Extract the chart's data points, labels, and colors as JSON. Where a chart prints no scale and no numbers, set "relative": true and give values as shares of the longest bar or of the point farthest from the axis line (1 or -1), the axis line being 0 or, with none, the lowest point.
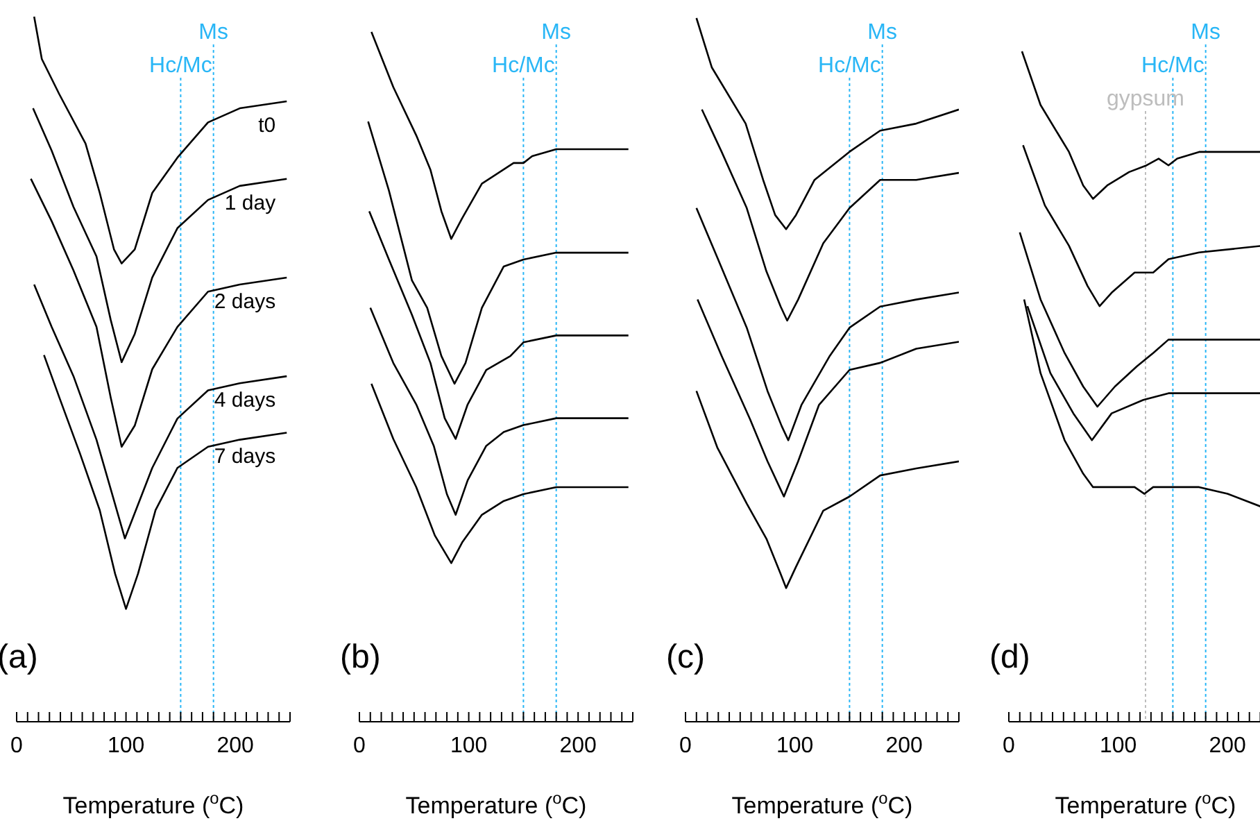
{
  "chart_data": [
    {
      "type": "line",
      "title": "(a)",
      "xlabel": "Temperature ($^{o}$C)",
      "relative": true,
      "xlim": [
        0,
        250
      ],
      "xticks": [
        0,
        {
          "value": 10,
          "label": null
        },
        {
          "value": 20,
          "label": null
        },
        {
          "value": 30,
          "label": null
        },
        {
          "value": 40,
          "label": null
        },
        {
          "value": 50,
          "label": null
        },
        {
          "value": 60,
          "label": null
        },
        {
          "value": 70,
          "label": null
        },
        {
          "value": 80,
          "label": null
        },
        {
          "value": 90,
          "label": null
        },
        100,
        {
          "value": 110,
          "label": null
        },
        {
          "value": 120,
          "label": null
        },
        {
          "value": 130,
          "label": null
        },
        {
          "value": 140,
          "label": null
        },
        {
          "value": 150,
          "label": null
        },
        {
          "value": 160,
          "label": null
        },
        {
          "value": 170,
          "label": null
        },
        {
          "value": 180,
          "label": null
        },
        {
          "value": 190,
          "label": null
        },
        200,
        {
          "value": 210,
          "label": null
        },
        {
          "value": 220,
          "label": null
        },
        {
          "value": 230,
          "label": null
        },
        {
          "value": 240,
          "label": null
        },
        {
          "value": 250,
          "label": null
        }
      ],
      "marker": "none",
      "line_style": "solid",
      "ref_lines": [
        {
          "axis": "x",
          "value": 150,
          "label": "Hc/Mc",
          "color": "#29b6f6",
          "line_style": "dotted"
        },
        {
          "axis": "x",
          "value": 180,
          "label": "Ms",
          "color": "#29b6f6",
          "line_style": "dotted"
        }
      ],
      "series": [
        {
          "name": "t0",
          "color": "#000000",
          "x": [
            16,
            23,
            39,
            63,
            76,
            89,
            96,
            108,
            124,
            147,
            175,
            204,
            247
          ],
          "values": [
            1.0,
            0.94,
            0.89,
            0.82,
            0.75,
            0.67,
            0.65,
            0.67,
            0.75,
            0.8,
            0.85,
            0.87,
            0.88
          ]
        },
        {
          "name": "1 day",
          "color": "#000000",
          "x": [
            15,
            32,
            52,
            73,
            86,
            96,
            108,
            124,
            147,
            175,
            204,
            247
          ],
          "values": [
            0.87,
            0.81,
            0.73,
            0.66,
            0.57,
            0.51,
            0.55,
            0.63,
            0.7,
            0.74,
            0.76,
            0.77
          ]
        },
        {
          "name": "2 days",
          "color": "#000000",
          "x": [
            13,
            32,
            52,
            73,
            86,
            96,
            108,
            124,
            147,
            175,
            204,
            247
          ],
          "values": [
            0.77,
            0.71,
            0.64,
            0.56,
            0.46,
            0.39,
            0.42,
            0.5,
            0.56,
            0.61,
            0.62,
            0.63
          ]
        },
        {
          "name": "4 days",
          "color": "#000000",
          "x": [
            16,
            32,
            52,
            73,
            86,
            99,
            109,
            124,
            147,
            175,
            204,
            247
          ],
          "values": [
            0.62,
            0.56,
            0.49,
            0.4,
            0.33,
            0.26,
            0.3,
            0.36,
            0.43,
            0.47,
            0.48,
            0.49
          ]
        },
        {
          "name": "7 days",
          "color": "#000000",
          "x": [
            25,
            39,
            58,
            76,
            90,
            100,
            111,
            127,
            147,
            175,
            204,
            247
          ],
          "values": [
            0.52,
            0.46,
            0.38,
            0.3,
            0.21,
            0.16,
            0.21,
            0.3,
            0.36,
            0.39,
            0.4,
            0.41
          ]
        }
      ]
    },
    {
      "type": "line",
      "title": "(b)",
      "xlabel": "Temperature ($^{o}$C)",
      "relative": true,
      "xlim": [
        0,
        250
      ],
      "xticks": [
        0,
        {
          "value": 10,
          "label": null
        },
        {
          "value": 20,
          "label": null
        },
        {
          "value": 30,
          "label": null
        },
        {
          "value": 40,
          "label": null
        },
        {
          "value": 50,
          "label": null
        },
        {
          "value": 60,
          "label": null
        },
        {
          "value": 70,
          "label": null
        },
        {
          "value": 80,
          "label": null
        },
        {
          "value": 90,
          "label": null
        },
        100,
        {
          "value": 110,
          "label": null
        },
        {
          "value": 120,
          "label": null
        },
        {
          "value": 130,
          "label": null
        },
        {
          "value": 140,
          "label": null
        },
        {
          "value": 150,
          "label": null
        },
        {
          "value": 160,
          "label": null
        },
        {
          "value": 170,
          "label": null
        },
        {
          "value": 180,
          "label": null
        },
        {
          "value": 190,
          "label": null
        },
        200,
        {
          "value": 210,
          "label": null
        },
        {
          "value": 220,
          "label": null
        },
        {
          "value": 230,
          "label": null
        },
        {
          "value": 240,
          "label": null
        },
        {
          "value": 250,
          "label": null
        }
      ],
      "marker": "none",
      "line_style": "solid",
      "ref_lines": [
        {
          "axis": "x",
          "value": 150,
          "label": "Hc/Mc",
          "color": "#29b6f6",
          "line_style": "dotted"
        },
        {
          "axis": "x",
          "value": 180,
          "label": "Ms",
          "color": "#29b6f6",
          "line_style": "dotted"
        }
      ],
      "series": [
        {
          "color": "#000000",
          "x": [
            11,
            31,
            52,
            65,
            75,
            84,
            94,
            112,
            141,
            150,
            158,
            180,
            209,
            246
          ],
          "values": [
            1.0,
            0.92,
            0.85,
            0.8,
            0.74,
            0.7,
            0.73,
            0.78,
            0.81,
            0.81,
            0.82,
            0.83,
            0.83,
            0.83
          ]
        },
        {
          "color": "#000000",
          "x": [
            8,
            27,
            48,
            62,
            75,
            87,
            97,
            112,
            132,
            150,
            180,
            246
          ],
          "values": [
            0.87,
            0.77,
            0.64,
            0.6,
            0.53,
            0.49,
            0.52,
            0.6,
            0.66,
            0.67,
            0.68,
            0.68
          ]
        },
        {
          "color": "#000000",
          "x": [
            9,
            27,
            48,
            65,
            78,
            88,
            99,
            116,
            138,
            150,
            180,
            246
          ],
          "values": [
            0.74,
            0.67,
            0.59,
            0.52,
            0.44,
            0.41,
            0.46,
            0.51,
            0.53,
            0.55,
            0.56,
            0.56
          ]
        },
        {
          "color": "#000000",
          "x": [
            10,
            31,
            52,
            68,
            80,
            88,
            99,
            116,
            132,
            150,
            180,
            246
          ],
          "values": [
            0.6,
            0.52,
            0.46,
            0.4,
            0.33,
            0.3,
            0.35,
            0.4,
            0.42,
            0.43,
            0.44,
            0.44
          ]
        },
        {
          "color": "#000000",
          "x": [
            11,
            31,
            52,
            69,
            84,
            94,
            112,
            132,
            150,
            180,
            246
          ],
          "values": [
            0.49,
            0.41,
            0.34,
            0.27,
            0.23,
            0.26,
            0.3,
            0.32,
            0.33,
            0.34,
            0.34
          ]
        }
      ]
    },
    {
      "type": "line",
      "title": "(c)",
      "xlabel": "Temperature ($^{o}$C)",
      "relative": true,
      "xlim": [
        0,
        250
      ],
      "xticks": [
        0,
        {
          "value": 10,
          "label": null
        },
        {
          "value": 20,
          "label": null
        },
        {
          "value": 30,
          "label": null
        },
        {
          "value": 40,
          "label": null
        },
        {
          "value": 50,
          "label": null
        },
        {
          "value": 60,
          "label": null
        },
        {
          "value": 70,
          "label": null
        },
        {
          "value": 80,
          "label": null
        },
        {
          "value": 90,
          "label": null
        },
        100,
        {
          "value": 110,
          "label": null
        },
        {
          "value": 120,
          "label": null
        },
        {
          "value": 130,
          "label": null
        },
        {
          "value": 140,
          "label": null
        },
        {
          "value": 150,
          "label": null
        },
        {
          "value": 160,
          "label": null
        },
        {
          "value": 170,
          "label": null
        },
        {
          "value": 180,
          "label": null
        },
        {
          "value": 190,
          "label": null
        },
        200,
        {
          "value": 210,
          "label": null
        },
        {
          "value": 220,
          "label": null
        },
        {
          "value": 230,
          "label": null
        },
        {
          "value": 240,
          "label": null
        },
        {
          "value": 250,
          "label": null
        }
      ],
      "marker": "none",
      "line_style": "solid",
      "ref_lines": [
        {
          "axis": "x",
          "value": 150,
          "label": "Hc/Mc",
          "color": "#29b6f6",
          "line_style": "dotted"
        },
        {
          "axis": "x",
          "value": 180,
          "label": "Ms",
          "color": "#29b6f6",
          "line_style": "dotted"
        }
      ],
      "series": [
        {
          "color": "#000000",
          "x": [
            10,
            24,
            55,
            71,
            82,
            92,
            101,
            118,
            150,
            178,
            211,
            250
          ],
          "values": [
            1.0,
            0.93,
            0.85,
            0.77,
            0.72,
            0.7,
            0.72,
            0.77,
            0.81,
            0.84,
            0.85,
            0.87
          ]
        },
        {
          "color": "#000000",
          "x": [
            15,
            33,
            56,
            74,
            87,
            93,
            103,
            126,
            150,
            178,
            211,
            250
          ],
          "values": [
            0.87,
            0.81,
            0.73,
            0.64,
            0.59,
            0.57,
            0.6,
            0.68,
            0.73,
            0.77,
            0.77,
            0.78
          ]
        },
        {
          "color": "#000000",
          "x": [
            10,
            29,
            56,
            75,
            88,
            94,
            106,
            132,
            150,
            178,
            211,
            250
          ],
          "values": [
            0.73,
            0.66,
            0.56,
            0.47,
            0.42,
            0.4,
            0.45,
            0.52,
            0.56,
            0.59,
            0.6,
            0.61
          ]
        },
        {
          "color": "#000000",
          "x": [
            11,
            33,
            59,
            75,
            87,
            90,
            103,
            122,
            150,
            178,
            211,
            250
          ],
          "values": [
            0.6,
            0.52,
            0.43,
            0.37,
            0.33,
            0.32,
            0.37,
            0.45,
            0.5,
            0.51,
            0.53,
            0.54
          ]
        },
        {
          "color": "#000000",
          "x": [
            10,
            29,
            56,
            74,
            87,
            92,
            101,
            126,
            150,
            178,
            211,
            250
          ],
          "values": [
            0.47,
            0.39,
            0.31,
            0.26,
            0.21,
            0.19,
            0.22,
            0.3,
            0.32,
            0.35,
            0.36,
            0.37
          ]
        }
      ]
    },
    {
      "type": "line",
      "title": "(d)",
      "xlabel": "Temperature ($^{o}$C)",
      "relative": true,
      "xlim": [
        0,
        250
      ],
      "xticks": [
        0,
        {
          "value": 10,
          "label": null
        },
        {
          "value": 20,
          "label": null
        },
        {
          "value": 30,
          "label": null
        },
        {
          "value": 40,
          "label": null
        },
        {
          "value": 50,
          "label": null
        },
        {
          "value": 60,
          "label": null
        },
        {
          "value": 70,
          "label": null
        },
        {
          "value": 80,
          "label": null
        },
        {
          "value": 90,
          "label": null
        },
        100,
        {
          "value": 110,
          "label": null
        },
        {
          "value": 120,
          "label": null
        },
        {
          "value": 130,
          "label": null
        },
        {
          "value": 140,
          "label": null
        },
        {
          "value": 150,
          "label": null
        },
        {
          "value": 160,
          "label": null
        },
        {
          "value": 170,
          "label": null
        },
        {
          "value": 180,
          "label": null
        },
        {
          "value": 190,
          "label": null
        },
        200,
        {
          "value": 210,
          "label": null
        },
        {
          "value": 220,
          "label": null
        },
        {
          "value": 230,
          "label": null
        },
        {
          "value": 240,
          "label": null
        },
        {
          "value": 250,
          "label": null
        }
      ],
      "marker": "none",
      "line_style": "solid",
      "ref_lines": [
        {
          "axis": "x",
          "value": 125,
          "label": "gypsum",
          "color": "#bdbdbd",
          "line_style": "dotted"
        },
        {
          "axis": "x",
          "value": 150,
          "label": "Hc/Mc",
          "color": "#29b6f6",
          "line_style": "dotted"
        },
        {
          "axis": "x",
          "value": 180,
          "label": "Ms",
          "color": "#29b6f6",
          "line_style": "dotted"
        }
      ],
      "series": [
        {
          "color": "#000000",
          "x": [
            12,
            29,
            55,
            68,
            77,
            90,
            110,
            126,
            137,
            146,
            154,
            174,
            209,
            232
          ],
          "values": [
            1.0,
            0.92,
            0.85,
            0.8,
            0.78,
            0.8,
            0.82,
            0.83,
            0.84,
            0.83,
            0.84,
            0.85,
            0.85,
            0.85
          ]
        },
        {
          "color": "#000000",
          "x": [
            13,
            33,
            55,
            72,
            83,
            94,
            115,
            132,
            146,
            174,
            232
          ],
          "values": [
            0.86,
            0.77,
            0.71,
            0.65,
            0.62,
            0.64,
            0.67,
            0.67,
            0.69,
            0.7,
            0.71
          ]
        },
        {
          "color": "#000000",
          "x": [
            10,
            29,
            51,
            68,
            81,
            97,
            117,
            132,
            146,
            174,
            232
          ],
          "values": [
            0.73,
            0.63,
            0.55,
            0.5,
            0.47,
            0.5,
            0.53,
            0.55,
            0.57,
            0.57,
            0.57
          ]
        },
        {
          "color": "#000000",
          "x": [
            17,
            38,
            59,
            76,
            94,
            123,
            146,
            174,
            232
          ],
          "values": [
            0.62,
            0.52,
            0.46,
            0.42,
            0.46,
            0.48,
            0.49,
            0.49,
            0.49
          ]
        },
        {
          "color": "#000000",
          "x": [
            14,
            29,
            51,
            68,
            77,
            115,
            124,
            132,
            145,
            158,
            174,
            200,
            232
          ],
          "values": [
            0.63,
            0.52,
            0.42,
            0.37,
            0.35,
            0.35,
            0.34,
            0.35,
            0.35,
            0.35,
            0.35,
            0.34,
            0.32
          ]
        }
      ]
    }
  ]
}
